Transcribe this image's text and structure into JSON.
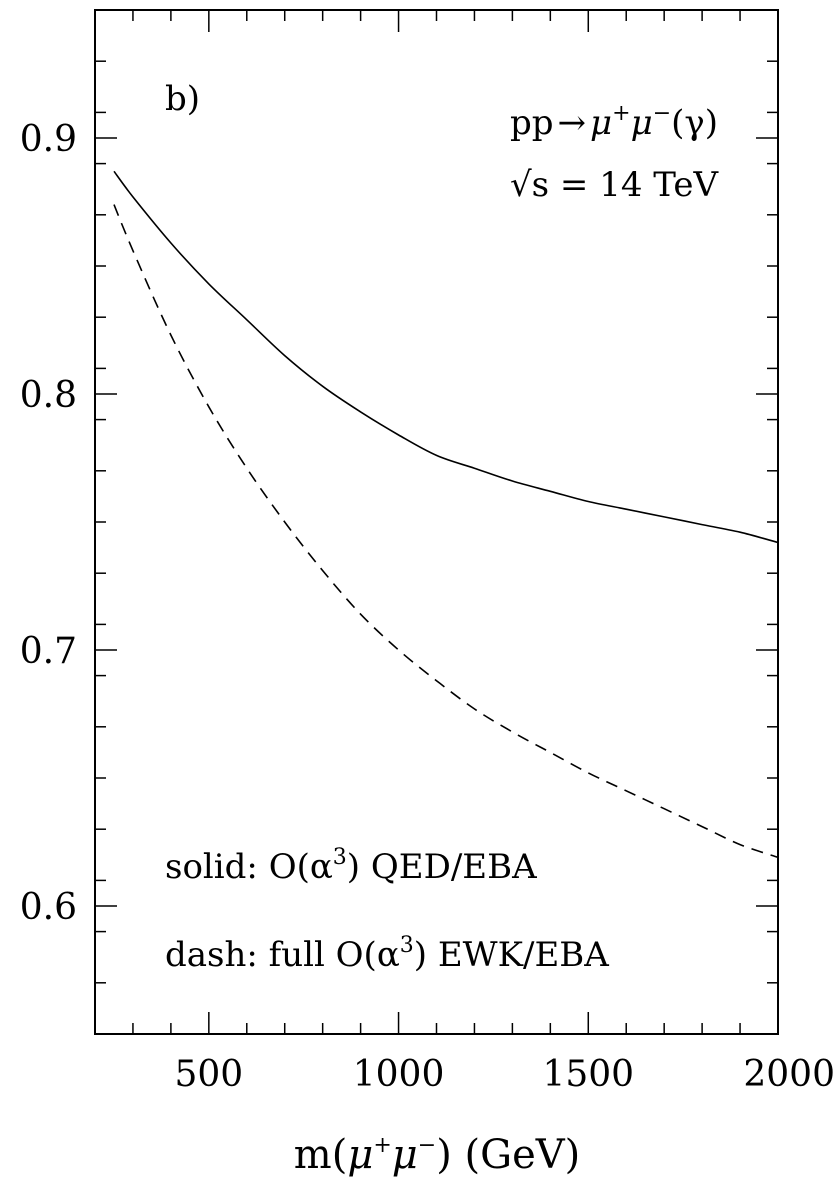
{
  "chart_data": {
    "type": "line",
    "panel_label": "b)",
    "xlabel": "m(μ⁺μ⁻) (GeV)",
    "xlabel_parts": {
      "pre": "m(",
      "mu": "μ",
      "plus": "+",
      "mu2": "μ",
      "minus": "−",
      "post": ") (GeV)"
    },
    "ylabel": "",
    "xlim": [
      200,
      2000
    ],
    "ylim": [
      0.55,
      0.95
    ],
    "x_ticks": [
      500,
      1000,
      1500,
      2000
    ],
    "x_tick_labels": [
      "500",
      "1000",
      "1500",
      "2000"
    ],
    "x_minor_step": 100,
    "y_ticks": [
      0.6,
      0.7,
      0.8,
      0.9
    ],
    "y_tick_labels": [
      "0.6",
      "0.7",
      "0.8",
      "0.9"
    ],
    "y_minor_step": 0.02,
    "grid": false,
    "process_text": {
      "pre": "pp",
      "arrow": "→",
      "mu": "μ",
      "plus": "+",
      "mu2": "μ",
      "minus": "−",
      "post": "(γ)"
    },
    "energy_text": {
      "sqrt": "√",
      "rest": "s = 14 TeV"
    },
    "legend": [
      {
        "pre": "solid: O(α",
        "sup": "3",
        "post": ") QED/EBA"
      },
      {
        "pre": "dash: full O(α",
        "sup": "3",
        "post": ") EWK/EBA"
      }
    ],
    "x": [
      250,
      300,
      400,
      500,
      600,
      700,
      800,
      900,
      1000,
      1100,
      1200,
      1300,
      1400,
      1500,
      1600,
      1700,
      1800,
      1900,
      2000
    ],
    "series": [
      {
        "style": "solid",
        "values": [
          0.887,
          0.877,
          0.859,
          0.843,
          0.829,
          0.815,
          0.803,
          0.793,
          0.784,
          0.776,
          0.771,
          0.766,
          0.762,
          0.758,
          0.755,
          0.752,
          0.749,
          0.746,
          0.742
        ]
      },
      {
        "style": "dashed",
        "values": [
          0.874,
          0.856,
          0.823,
          0.795,
          0.771,
          0.75,
          0.731,
          0.714,
          0.7,
          0.688,
          0.677,
          0.668,
          0.66,
          0.652,
          0.645,
          0.638,
          0.631,
          0.624,
          0.619
        ]
      }
    ]
  }
}
